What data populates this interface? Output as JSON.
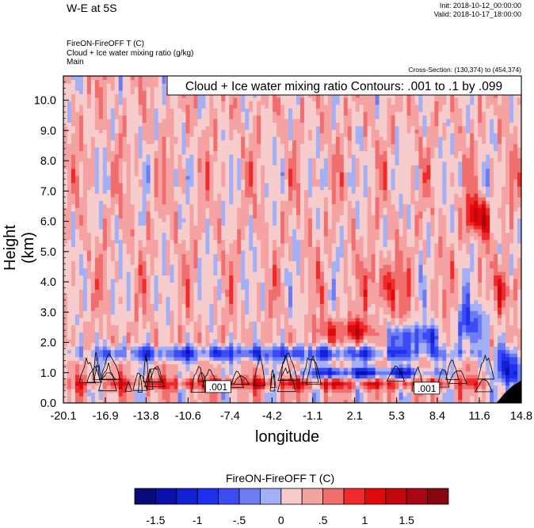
{
  "header": {
    "title": "W-E at 5S",
    "init": "Init: 2018-10-12_00:00:00",
    "valid": "Valid: 2018-10-17_18:00:00",
    "variable": "FireON-FireOFF T   (C)",
    "variable2": "Cloud + Ice water mixing ratio   (g/kg)",
    "run": "Main",
    "cross_section": "Cross-Section: (130,374) to (454,374)"
  },
  "chart_data": {
    "type": "heatmap",
    "title": "W-E at 5S",
    "contour_label": "Cloud + Ice water mixing ratio Contours: .001 to .1 by .099",
    "contour_value_labels": [
      ".001",
      ".001"
    ],
    "xlabel": "longitude",
    "ylabel": "Height (km)",
    "x_ticks": [
      "-20.1",
      "-16.9",
      "-13.8",
      "-10.6",
      "-7.4",
      "-4.2",
      "-1.1",
      "2.1",
      "5.3",
      "8.4",
      "11.6",
      "14.8"
    ],
    "y_ticks": [
      "0.0",
      "1.0",
      "2.0",
      "3.0",
      "4.0",
      "5.0",
      "6.0",
      "7.0",
      "8.0",
      "9.0",
      "10.0"
    ],
    "xlim": [
      -20.1,
      14.8
    ],
    "ylim": [
      0,
      10.8
    ],
    "colorbar": {
      "title": "FireON-FireOFF T  (C)",
      "levels": [
        -1.75,
        -1.5,
        -1.25,
        -1,
        -0.75,
        -0.5,
        -0.25,
        0,
        0.25,
        0.5,
        0.75,
        1,
        1.25,
        1.5,
        1.75
      ],
      "tick_labels": [
        "-1.5",
        "-1",
        "-.5",
        "0",
        ".5",
        "1",
        "1.5"
      ],
      "colors": [
        "#0a0a78",
        "#0b10a8",
        "#1420d4",
        "#1f2ff0",
        "#3c4cf5",
        "#6d7cf2",
        "#a4b0f5",
        "#f7cccc",
        "#f4a2a2",
        "#f06e6e",
        "#f02a2a",
        "#e00a0a",
        "#c4080d",
        "#a80612",
        "#85060c"
      ]
    },
    "field_features": [
      {
        "kind": "cold",
        "lon": [
          -19,
          10
        ],
        "z": [
          1.4,
          1.9
        ],
        "value": -1.2
      },
      {
        "kind": "cold",
        "lon": [
          -2,
          8
        ],
        "z": [
          0.8,
          1.2
        ],
        "value": -1.5
      },
      {
        "kind": "warm",
        "lon": [
          -19,
          13
        ],
        "z": [
          0.45,
          0.85
        ],
        "value": 0.9
      },
      {
        "kind": "warm",
        "lon": [
          -0.5,
          3.5
        ],
        "z": [
          2.0,
          2.8
        ],
        "value": 1.0
      },
      {
        "kind": "cold",
        "lon": [
          5,
          8.5
        ],
        "z": [
          1.8,
          2.6
        ],
        "value": -1.3
      },
      {
        "kind": "warm",
        "lon": [
          3,
          6
        ],
        "z": [
          3.0,
          4.8
        ],
        "value": 0.7
      },
      {
        "kind": "warm",
        "lon": [
          10.5,
          12.5
        ],
        "z": [
          5.5,
          6.8
        ],
        "value": 1.2
      },
      {
        "kind": "warm",
        "lon": [
          13,
          14.5
        ],
        "z": [
          3.0,
          4.5
        ],
        "value": 1.1
      },
      {
        "kind": "cold",
        "lon": [
          13,
          14.8
        ],
        "z": [
          0.3,
          1.8
        ],
        "value": -1.7
      },
      {
        "kind": "cold",
        "lon": [
          10,
          12.5
        ],
        "z": [
          1.8,
          3.5
        ],
        "value": -1.0
      }
    ]
  }
}
